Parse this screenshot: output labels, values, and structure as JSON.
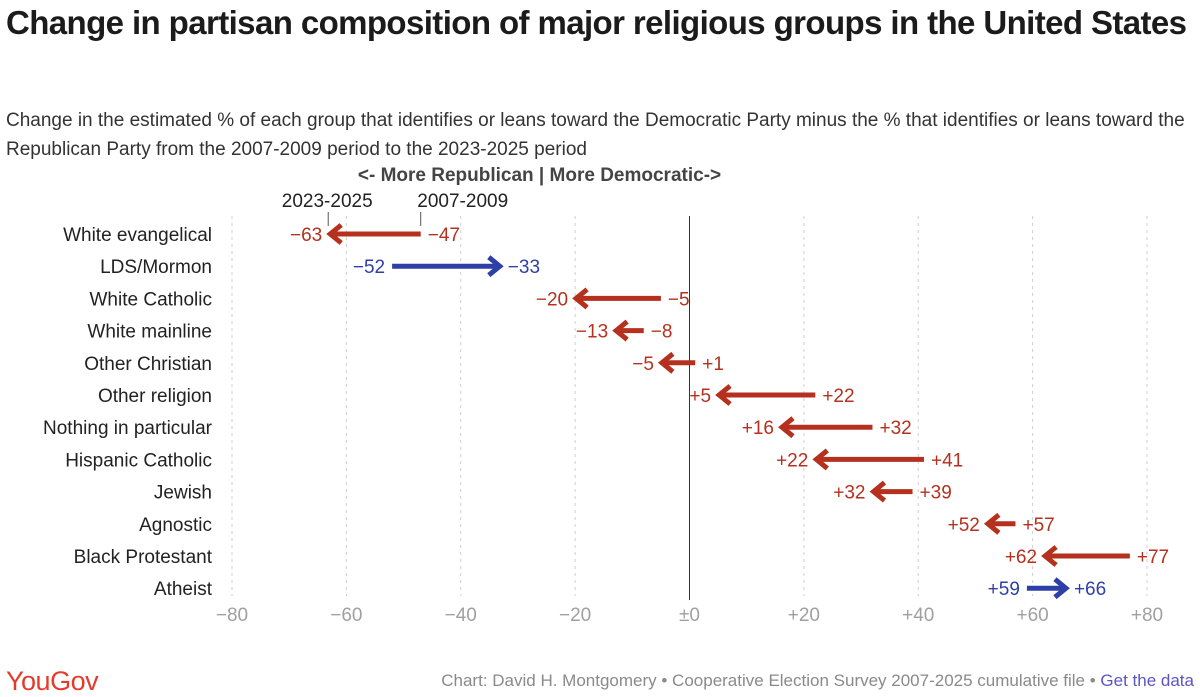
{
  "title": "Change in partisan composition of major religious groups in the United States",
  "subtitle": "Change in the estimated % of each group that identifies or leans toward the Democratic Party minus the % that identifies or leans toward the Republican Party from the 2007-2009 period to the 2023-2025 period",
  "footer": {
    "logo": "YouGov",
    "credit": "Chart: David H. Montgomery • Cooperative Election Survey 2007-2025 cumulative file •",
    "link": "Get the data"
  },
  "colors": {
    "red": "#b5301d",
    "blue": "#2f3fa8",
    "axis": "#999999",
    "zero": "#333333"
  },
  "chart_data": {
    "type": "dumbbell-arrow",
    "direction_label": "<- More Republican | More Democratic->",
    "start_label": "2007-2009",
    "end_label": "2023-2025",
    "xlim": [
      -80,
      80
    ],
    "ticks": [
      -80,
      -60,
      -40,
      -20,
      0,
      20,
      40,
      60,
      80
    ],
    "tick_labels": [
      "−80",
      "−60",
      "−40",
      "−20",
      "±0",
      "+20",
      "+40",
      "+60",
      "+80"
    ],
    "series": [
      {
        "group": "White evangelical",
        "from": -47,
        "to": -63,
        "from_label": "−47",
        "to_label": "−63"
      },
      {
        "group": "LDS/Mormon",
        "from": -52,
        "to": -33,
        "from_label": "−52",
        "to_label": "−33"
      },
      {
        "group": "White Catholic",
        "from": -5,
        "to": -20,
        "from_label": "−5",
        "to_label": "−20"
      },
      {
        "group": "White mainline",
        "from": -8,
        "to": -13,
        "from_label": "−8",
        "to_label": "−13"
      },
      {
        "group": "Other Christian",
        "from": 1,
        "to": -5,
        "from_label": "+1",
        "to_label": "−5"
      },
      {
        "group": "Other religion",
        "from": 22,
        "to": 5,
        "from_label": "+22",
        "to_label": "+5"
      },
      {
        "group": "Nothing in particular",
        "from": 32,
        "to": 16,
        "from_label": "+32",
        "to_label": "+16"
      },
      {
        "group": "Hispanic Catholic",
        "from": 41,
        "to": 22,
        "from_label": "+41",
        "to_label": "+22"
      },
      {
        "group": "Jewish",
        "from": 39,
        "to": 32,
        "from_label": "+39",
        "to_label": "+32"
      },
      {
        "group": "Agnostic",
        "from": 57,
        "to": 52,
        "from_label": "+57",
        "to_label": "+52"
      },
      {
        "group": "Black Protestant",
        "from": 77,
        "to": 62,
        "from_label": "+77",
        "to_label": "+62"
      },
      {
        "group": "Atheist",
        "from": 59,
        "to": 66,
        "from_label": "+59",
        "to_label": "+66"
      }
    ]
  }
}
